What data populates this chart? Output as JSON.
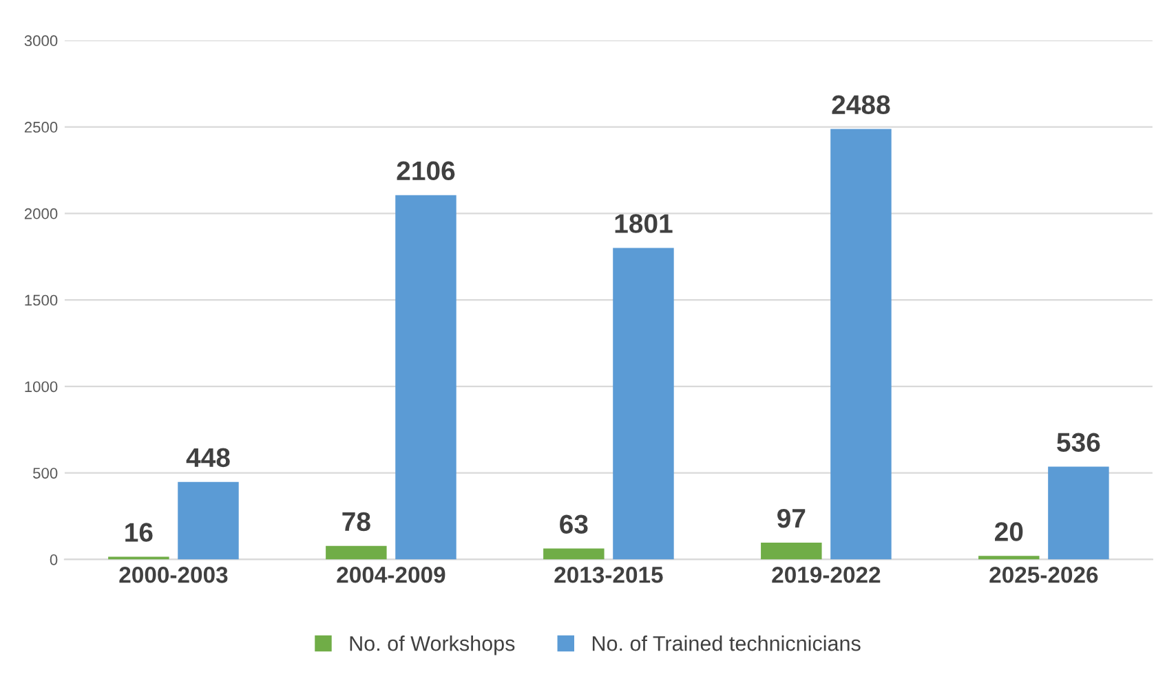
{
  "chart_data": {
    "type": "bar",
    "categories": [
      "2000-2003",
      "2004-2009",
      "2013-2015",
      "2019-2022",
      "2025-2026"
    ],
    "series": [
      {
        "name": "No. of Workshops",
        "color": "#70ad47",
        "values": [
          16,
          78,
          63,
          97,
          20
        ]
      },
      {
        "name": "No. of Trained technicnicians",
        "color": "#5b9bd5",
        "values": [
          448,
          2106,
          1801,
          2488,
          536
        ]
      }
    ],
    "ylim": [
      0,
      3000
    ],
    "yticks": [
      0,
      500,
      1000,
      1500,
      2000,
      2500,
      3000
    ],
    "grid": "y",
    "legend": "bottom",
    "data_labels": true
  }
}
